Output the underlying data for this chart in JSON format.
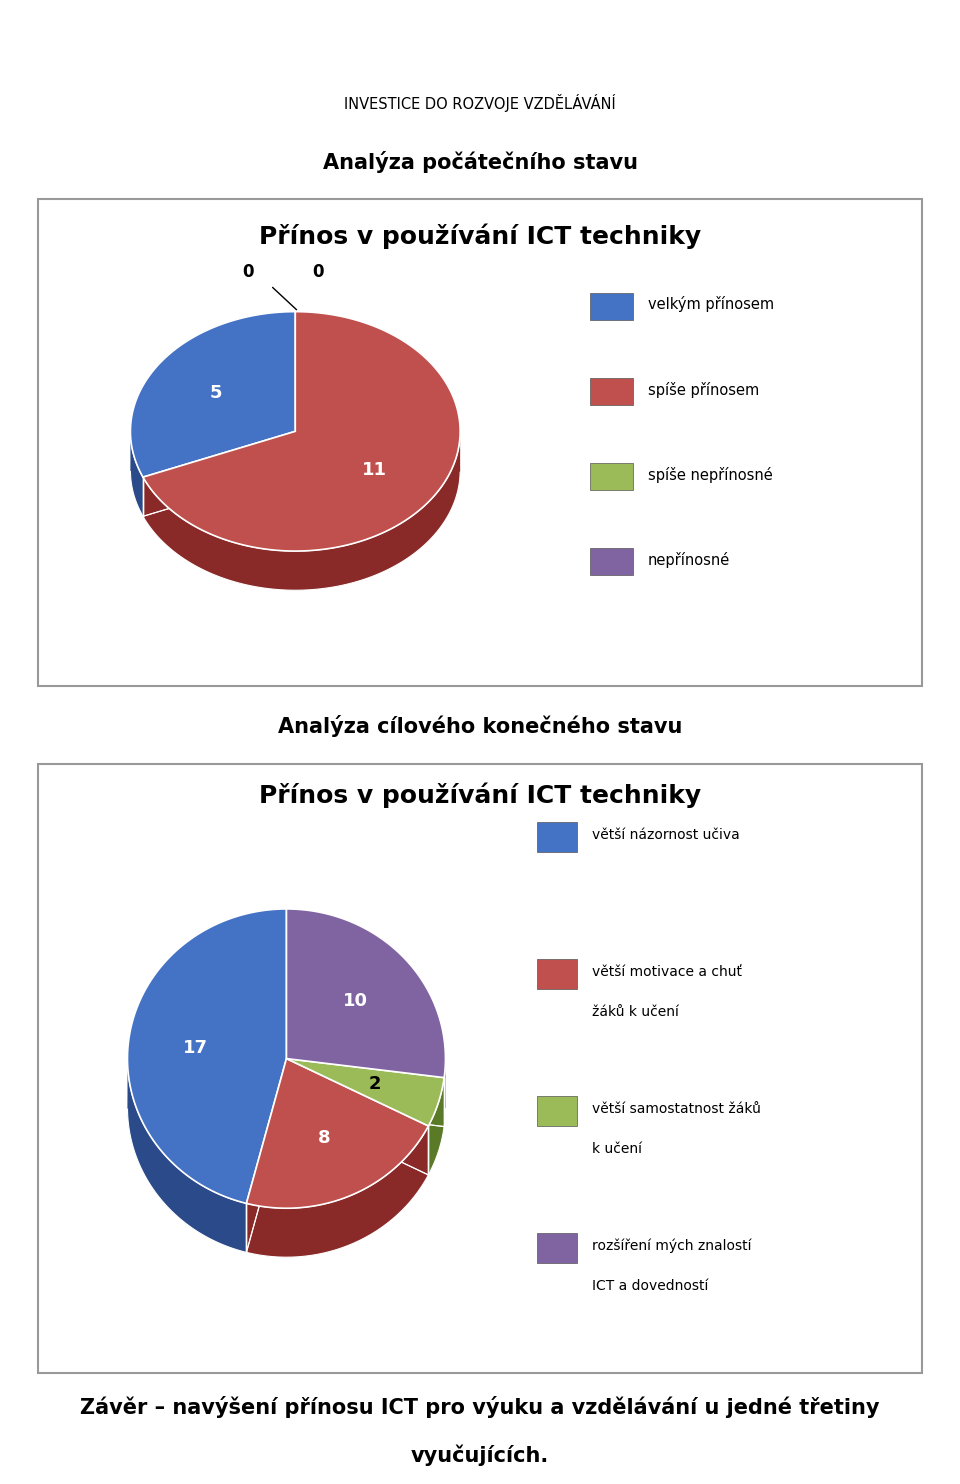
{
  "header_text": "INVESTICE DO ROZVOJE VZDĚLÁVÁNÍ",
  "section1_title": "Analýza počátečního stavu",
  "section2_title": "Analýza cílového konečného stavu",
  "chart_title": "Přínos v používání ICT techniky",
  "pie1_values": [
    5,
    11,
    0,
    0
  ],
  "pie2_values": [
    17,
    8,
    2,
    10
  ],
  "pie1_labels": [
    "velkým přínosem",
    "spíše přínosem",
    "spíše nepřínosné",
    "nepřínosné"
  ],
  "pie2_labels": [
    "větší názornost učiva",
    "větší motivace a chuť\nžáků k učení",
    "větší samostatnost žáků\nk učení",
    "rozšíření mých znalostí\nICT a dovedností"
  ],
  "pie_colors": [
    "#4472C4",
    "#C0504D",
    "#9BBB59",
    "#8064A2"
  ],
  "pie_dark_colors": [
    "#2a4a8a",
    "#8a2a28",
    "#5a7a28",
    "#4a3a6a"
  ],
  "footer_line1": "Závěr – navýšení přínosu ICT pro výuku a vzdělávání u jedné třetiny",
  "footer_line2": "vyučujících.",
  "bg_color": "#ffffff",
  "box_edge_color": "#999999"
}
